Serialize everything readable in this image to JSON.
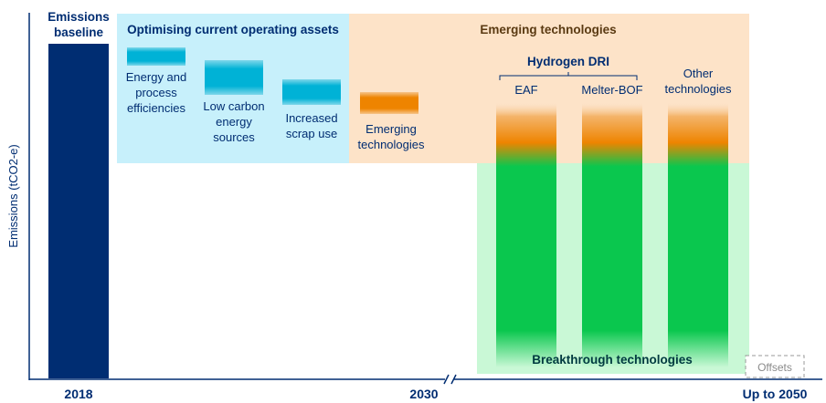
{
  "chart_data": {
    "type": "waterfall",
    "ylabel": "Emissions (tCO2-e)",
    "x_ticks": [
      "2018",
      "2030",
      "Up to 2050"
    ],
    "baseline": {
      "label": "Emissions\nbaseline",
      "tick": "2018",
      "value": 100
    },
    "groups": [
      {
        "title": "Optimising current operating assets",
        "steps": [
          {
            "label": "Energy and\nprocess\nefficiencies"
          },
          {
            "label": "Low carbon\nenergy\nsources"
          },
          {
            "label": "Increased\nscrap use"
          }
        ]
      },
      {
        "title": "Emerging technologies",
        "steps": [
          {
            "label": "Emerging\ntechnologies"
          }
        ],
        "pathways_heading": "Hydrogen DRI",
        "pathways": [
          {
            "label": "EAF"
          },
          {
            "label": "Melter-BOF"
          },
          {
            "label": "Other\ntechnologies"
          }
        ]
      }
    ],
    "breakthrough_label": "Breakthrough technologies",
    "offsets_label": "Offsets",
    "colors": {
      "baseline": "#002d72",
      "optimising_panel": "#c7f0fb",
      "optimising_step": "#00b2d6",
      "emerging_panel": "#fde3c8",
      "emerging_step": "#ee8400",
      "breakthrough_panel": "#c9f8d6",
      "breakthrough_bar": "#0ac74e",
      "axis": "#002d72",
      "emerging_title": "#5a3a12"
    }
  }
}
